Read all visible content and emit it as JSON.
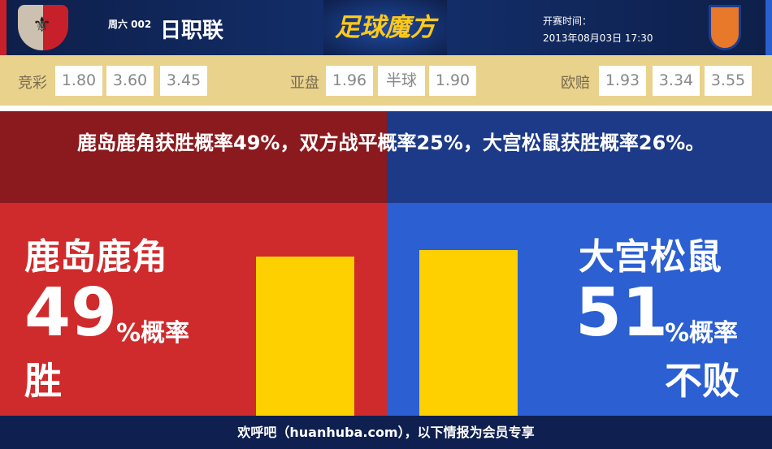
{
  "header": {
    "day": "周六 002",
    "league": "日职联",
    "brand": "足球魔方",
    "kickoff_label": "开赛时间：",
    "kickoff_time": "2013年08月03日 17:30"
  },
  "odds": {
    "jingcai": {
      "label": "竞彩",
      "values": [
        "1.80",
        "3.60",
        "3.45"
      ]
    },
    "asian": {
      "label": "亚盘",
      "values": [
        "1.96",
        "半球",
        "1.90"
      ]
    },
    "euro": {
      "label": "欧赔",
      "values": [
        "1.93",
        "3.34",
        "3.55"
      ]
    }
  },
  "summary": "鹿岛鹿角获胜概率49%，双方战平概率25%，大宫松鼠获胜概率26%。",
  "home": {
    "name": "鹿岛鹿角",
    "pct": "49",
    "unit": "%概率",
    "result": "胜",
    "bar_percent": 49
  },
  "away": {
    "name": "大宫松鼠",
    "pct": "51",
    "unit": "%概率",
    "result": "不败",
    "bar_percent": 51
  },
  "footer": "欢呼吧（huanhuba.com），以下情报为会员专享",
  "colors": {
    "home": "#cf2a2c",
    "away": "#2b5fd2",
    "bar": "#ffd000",
    "odds_bg": "#e9d28c"
  }
}
